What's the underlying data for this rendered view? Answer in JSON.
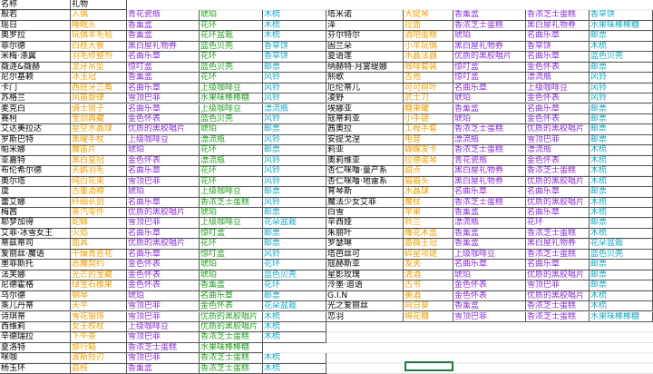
{
  "left": {
    "header": [
      "名称",
      "礼物"
    ],
    "rows": [
      [
        "般若",
        "人偶",
        "青花瓷瓶",
        "琥珀",
        "木梳"
      ],
      [
        "瑶日",
        "睡眠头",
        "香薰盒",
        "花环",
        "木梳"
      ],
      [
        "奥罗拉",
        "玩偶羊毛毡",
        "香薰盒",
        "花环盆栽",
        "木梳"
      ],
      [
        "菲尔德",
        "白桂大餐",
        "黑白屋礼物券",
        "蓝色贝壳",
        "香草饼"
      ],
      [
        "米梅·涤翼",
        "羽毛修整剂",
        "名曲乐章",
        "花环",
        "香草饼"
      ],
      [
        "薇涟&薇赫",
        "龙牙吊坠",
        "惊叮盒",
        "蓝色贝壳",
        "邮票"
      ],
      [
        "尼尔基赖",
        "冰玉冠",
        "香薰盒",
        "花环",
        "风铃"
      ],
      [
        "卡门",
        "西班牙三角",
        "名曲乐章",
        "上级咖啡豆",
        "风铃"
      ],
      [
        "苏格兰",
        "风笛旋律",
        "雪顶巴菲",
        "水果味棒棒糖",
        "风铃"
      ],
      [
        "麦克白",
        "骑士锁子",
        "名曲乐章",
        "上级咖啡豆",
        "漂流瓶"
      ],
      [
        "赛柯",
        "宝剑典藏",
        "金色怀表",
        "蓝色贝壳",
        "风铃"
      ],
      [
        "艾达美拉达",
        "星空水晶球",
        "优质的黑胶唱片",
        "琥珀",
        "邮票"
      ],
      [
        "罗斯巴特",
        "黑曜手杖",
        "上级咖啡豆",
        "漂流瓶",
        "风铃"
      ],
      [
        "帕米娜",
        "魔笛片",
        "琥珀",
        "花环",
        "邮票"
      ],
      [
        "亚嘉特",
        "黑白皇冠",
        "金色怀表",
        "漂流瓶",
        "风铃"
      ],
      [
        "布伦希尔德",
        "天鹅羽毛",
        "名曲乐章",
        "花环",
        "风铃"
      ],
      [
        "奥尔塔",
        "纯白花束",
        "雪顶巴菲",
        "花环",
        "风铃"
      ],
      [
        "虞",
        "古董酒樽",
        "琥珀",
        "上级咖啡豆",
        "邮票"
      ],
      [
        "蕾艾娜",
        "纤细长剑",
        "名曲乐章",
        "香浓芝士蛋糕",
        "风铃"
      ],
      [
        "梅茜",
        "蒸汽零件",
        "优质的黑胶唱片",
        "琥珀",
        "邮票"
      ],
      [
        "耶梦加得",
        "蛇鳞",
        "雪顶巴菲",
        "上级咖啡豆",
        "花朵盆栽"
      ],
      [
        "艾菲·冰雪女王",
        "火焰",
        "名曲乐章",
        "惊叮盒",
        "邮票"
      ],
      [
        "蒂兹蒂司",
        "面具",
        "优质的黑胶唱片",
        "花环",
        "邮票"
      ],
      [
        "爱丽丝·魔语",
        "干燥青苔花",
        "名曲乐章",
        "惊叮盒",
        "风铃"
      ],
      [
        "墨菲斯托",
        "恶魔契约",
        "金色怀表",
        "琥珀",
        "花环"
      ],
      [
        "法芙娜",
        "光芒的宝藏",
        "金色怀表",
        "琥珀",
        "蓝色贝壳"
      ],
      [
        "尼德霍格",
        "绿宝石橡果",
        "金色怀表",
        "香薰盒",
        "花环"
      ],
      [
        "乌尔德",
        "钢琴",
        "琥珀",
        "名曲乐章",
        "邮票"
      ],
      [
        "蒸儿丹蒂",
        "天平",
        "雪顶巴菲",
        "金色怀表",
        "花朵盆栽"
      ],
      [
        "诗琪蒂",
        "雪花银饰",
        "雪顶巴菲",
        "优质的黑胶唱片",
        "木梳"
      ],
      [
        "西维莉",
        "女王权杖",
        "上级咖啡豆",
        "优质的黑胶唱片",
        "木梳"
      ],
      [
        "辛德瑞拉",
        "下午茶",
        "雪顶巴菲",
        "香浓芝士蛋糕",
        "木梳"
      ],
      [
        "夏洛特",
        "旅行箱",
        "香浓芝士蛋糕",
        "水果味棒棒糖"
      ],
      [
        "咪咖",
        "波斯短刃",
        "雪顶巴菲",
        "香浓芝士蛋糕",
        "木梳"
      ],
      [
        "杨玉环",
        "荔枝",
        "香薰盒",
        "香浓芝士蛋糕",
        "木梳"
      ]
    ]
  },
  "right": {
    "rows": [
      [
        "塔米诺",
        "大提琴",
        "香薰盒",
        "香浓芝士蛋糕",
        "香草饼"
      ],
      [
        "泽",
        "拉面",
        "香浓芝士蛋糕",
        "黑白屋礼物券",
        "水果味棒棒糖"
      ],
      [
        "芬尔特尔",
        "酒吧蛋糕",
        "琥珀",
        "名曲乐章",
        "邮票"
      ],
      [
        "固兰朵",
        "小羊玩偶",
        "黑白屋礼物券",
        "香草饼",
        "木梳"
      ],
      [
        "夏语莲",
        "水晶法器",
        "优质的黑胶唱片",
        "名曲乐章",
        "蓝色贝壳"
      ],
      [
        "纳赫特·月雾缇娜",
        "咖啡套装",
        "惊叮盒",
        "金色怀表",
        "邮票"
      ],
      [
        "熙歌",
        "吉他",
        "惊叮盒",
        "漂流瓶",
        "风铃"
      ],
      [
        "厄伦蒂儿",
        "可可树叶",
        "名曲乐章",
        "上级咖啡豆",
        "风铃"
      ],
      [
        "凌野",
        "武士刀",
        "琥珀",
        "金色怀表",
        "风铃"
      ],
      [
        "埃娜亚",
        "糖果罐",
        "香薰盒",
        "名曲乐章",
        "邮票"
      ],
      [
        "寇蒂莉亚",
        "小手链",
        "琥珀",
        "金色怀表",
        "邮票"
      ],
      [
        "茜奥拉",
        "工程手套",
        "香浓芝士蛋糕",
        "优质的黑胶唱片",
        "邮票"
      ],
      [
        "安提戈涅",
        "电音",
        "漂流瓶",
        "雪顶巴菲",
        "邮票"
      ],
      [
        "莉亚",
        "蝴蝶发卡",
        "香浓芝士蛋糕",
        "漂流瓶",
        "木梳"
      ],
      [
        "奥莉维亚",
        "拉德诺琴",
        "青花瓷瓶",
        "金色怀表",
        "木梳"
      ],
      [
        "杏仁咪噜·量产系",
        "甜点",
        "黑白屋礼物券",
        "香浓芝士蛋糕",
        "木梳"
      ],
      [
        "杏仁咪噜·地雷系",
        "猫猫头",
        "黑白屋礼物券",
        "优质的黑胶唱片",
        "木梳"
      ],
      [
        "育琴斯",
        "水晶球",
        "名曲乐章",
        "名曲乐章",
        "邮票"
      ],
      [
        "魔法少女艾菲",
        "魔杖",
        "香浓芝士蛋糕",
        "优质的黑胶唱片",
        "木梳"
      ],
      [
        "白雪",
        "苹果",
        "香薰盒",
        "名曲乐章",
        "木梳"
      ],
      [
        "辛西娅",
        "铃兰",
        "漂流瓶",
        "花环",
        "邮票"
      ],
      [
        "朱丽叶",
        "雕花木盒",
        "香薰盒",
        "香浓芝士蛋糕",
        "木梳"
      ],
      [
        "罗瑟琳",
        "蔷薇王冠",
        "香薰盒",
        "黑白屋礼物券",
        "花朵盆栽"
      ],
      [
        "塔芭丝可",
        "碎星项链",
        "上级咖啡豆",
        "香浓芝士蛋糕",
        "蓝色贝壳"
      ],
      [
        "寇赫斯亚",
        "发夹",
        "名曲乐章",
        "名曲乐章",
        "邮票"
      ],
      [
        "星影玫瑰",
        "清酒",
        "琥珀",
        "优质的黑胶唱片",
        "邮票"
      ],
      [
        "泠墨·追语",
        "古书",
        "金色怀表",
        "雪顶巴菲",
        "邮票"
      ],
      [
        "G.I.N",
        "美酒",
        "金色怀表",
        "优质的黑胶唱片",
        "木梳"
      ],
      [
        "光之爱丽丝",
        "向日葵",
        "香薰盒",
        "香浓芝士蛋糕",
        "木梳"
      ],
      [
        "恋羽",
        "棉花糖",
        "雪顶巴菲",
        "香浓芝士蛋糕",
        "水果味棒棒糖"
      ]
    ]
  }
}
